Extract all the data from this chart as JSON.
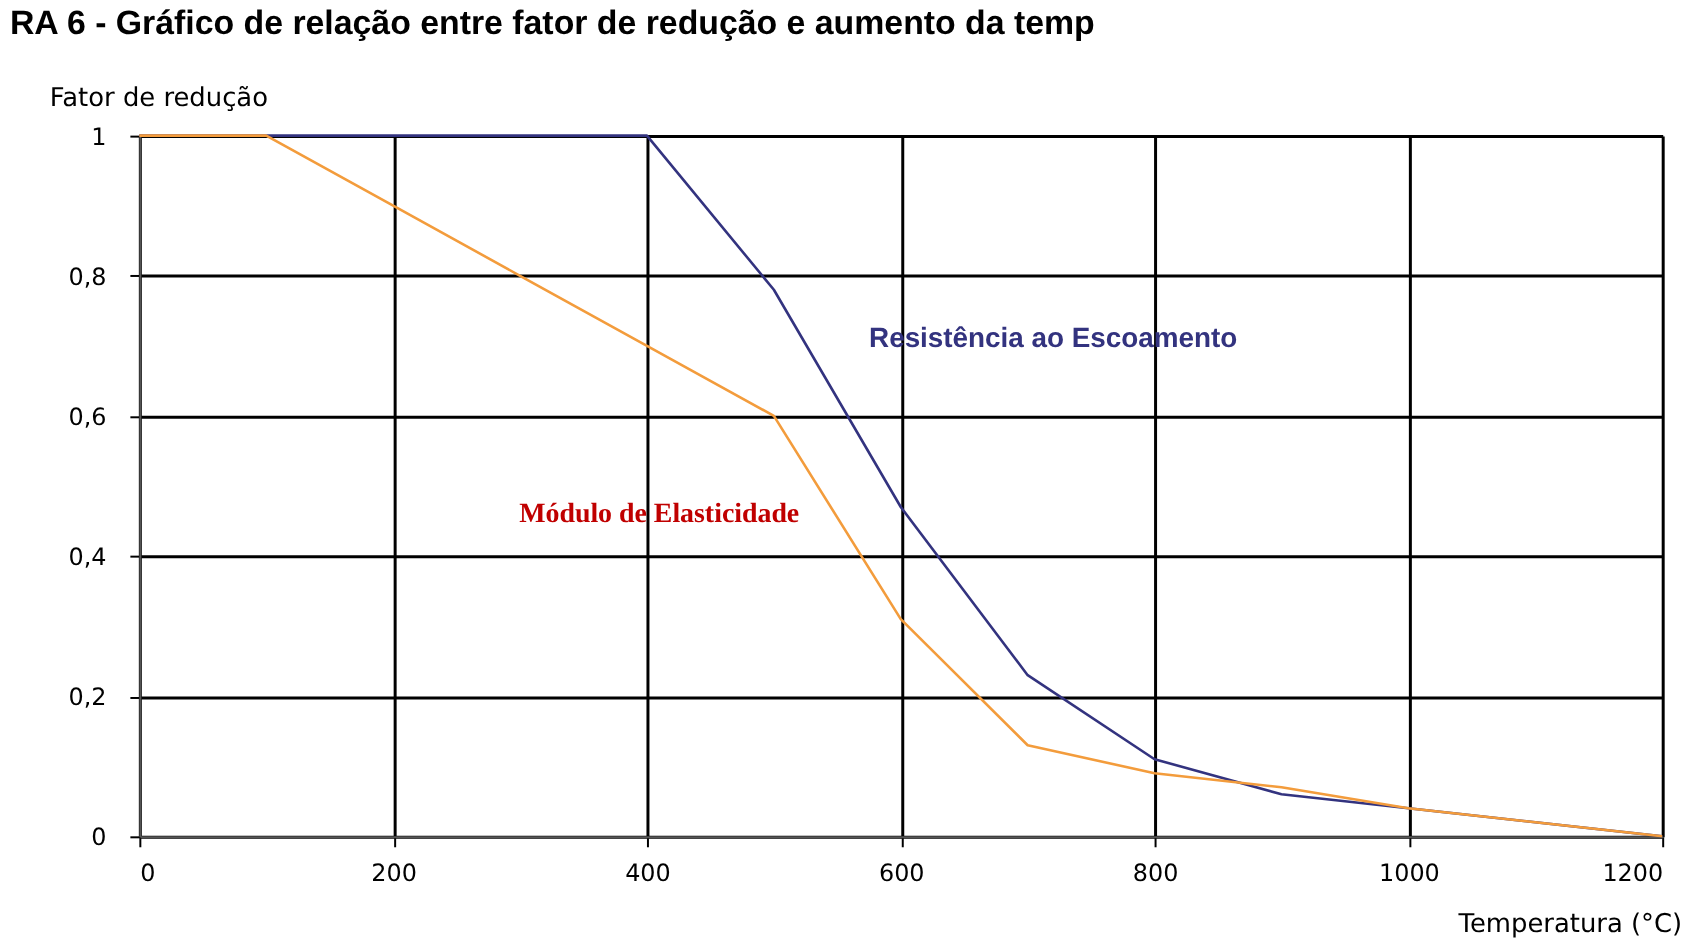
{
  "chart_data": {
    "type": "line",
    "title": "RA 6 - Gráfico de relação entre fator de redução e aumento da temp",
    "xlabel": "Temperatura (°C)",
    "ylabel": "Fator de redução",
    "x": [
      0,
      100,
      200,
      300,
      400,
      500,
      600,
      700,
      800,
      900,
      1000,
      1100,
      1200
    ],
    "series": [
      {
        "name": "Resistência ao Escoamento",
        "color": "#33337f",
        "values": [
          1,
          1,
          1,
          1,
          1,
          0.78,
          0.47,
          0.23,
          0.11,
          0.06,
          0.04,
          0.02,
          0
        ]
      },
      {
        "name": "Módulo de Elasticidade",
        "color": "#f39c3c",
        "values": [
          1,
          1,
          0.9,
          0.8,
          0.7,
          0.6,
          0.31,
          0.13,
          0.09,
          0.07,
          0.04,
          0.02,
          0
        ]
      }
    ],
    "xlim": [
      0,
      1200
    ],
    "xticks": [
      0,
      200,
      400,
      600,
      800,
      1000,
      1200
    ],
    "ylim": [
      0,
      1
    ],
    "yticks": [
      0,
      {
        "value": 0.2,
        "label": "0,2"
      },
      {
        "value": 0.4,
        "label": "0,4"
      },
      {
        "value": 0.6,
        "label": "0,6"
      },
      {
        "value": 0.8,
        "label": "0,8"
      },
      1
    ],
    "grid": true,
    "legend": false,
    "marker": "none",
    "line_style": "solid"
  }
}
